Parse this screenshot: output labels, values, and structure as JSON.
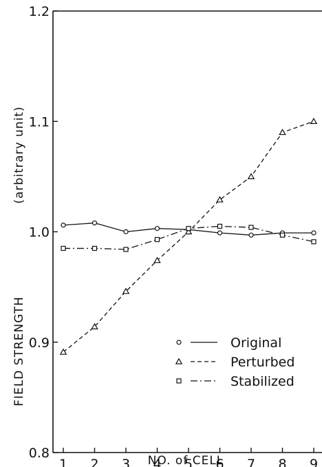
{
  "chart_data": {
    "type": "line",
    "title": "",
    "xlabel": "NO. of CELL",
    "ylabel": "FIELD STRENGTH (arbitrary unit)",
    "ylabel_main": "FIELD STRENGTH",
    "ylabel_unit": "(arbitrary unit)",
    "x": [
      1,
      2,
      3,
      4,
      5,
      6,
      7,
      8,
      9
    ],
    "x_tick_labels": [
      "1",
      "2",
      "3",
      "4",
      "5",
      "6",
      "7",
      "8",
      "9"
    ],
    "y_tick_labels": [
      "0.8",
      "0.9",
      "1.0",
      "1.1",
      "1.2"
    ],
    "ylim": [
      0.8,
      1.2
    ],
    "grid": false,
    "legend_position": "bottom-right",
    "series": [
      {
        "name": "Original",
        "marker": "circle",
        "dash": "solid",
        "values": [
          1.006,
          1.008,
          1.0,
          1.003,
          1.002,
          0.999,
          0.997,
          0.999,
          0.999
        ]
      },
      {
        "name": "Perturbed",
        "marker": "triangle",
        "dash": "dashed",
        "values": [
          0.891,
          0.914,
          0.946,
          0.974,
          1.0,
          1.029,
          1.05,
          1.09,
          1.1
        ]
      },
      {
        "name": "Stabilized",
        "marker": "square",
        "dash": "dashdot",
        "values": [
          0.985,
          0.985,
          0.984,
          0.993,
          1.003,
          1.005,
          1.004,
          0.997,
          0.991
        ]
      }
    ]
  }
}
